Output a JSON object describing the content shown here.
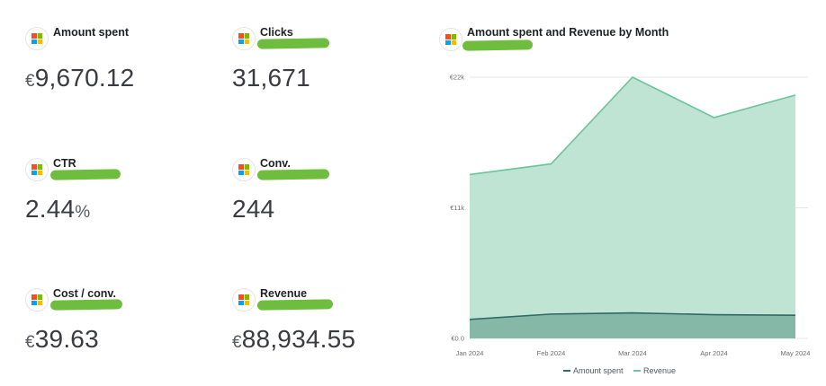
{
  "kpis": {
    "amount_spent": {
      "title": "Amount spent",
      "prefix": "€",
      "value": "9,670.12",
      "suffix": ""
    },
    "clicks": {
      "title": "Clicks",
      "prefix": "",
      "value": "31,671",
      "suffix": ""
    },
    "ctr": {
      "title": "CTR",
      "prefix": "",
      "value": "2.44",
      "suffix": "%"
    },
    "conv": {
      "title": "Conv.",
      "prefix": "",
      "value": "244",
      "suffix": ""
    },
    "cost_per_conv": {
      "title": "Cost / conv.",
      "prefix": "€",
      "value": "39.63",
      "suffix": ""
    },
    "revenue": {
      "title": "Revenue",
      "prefix": "€",
      "value": "88,934.55",
      "suffix": ""
    }
  },
  "icons": {
    "platform_logo": "microsoft-logo-icon"
  },
  "colors": {
    "revenue_line": "#6cc49a",
    "revenue_fill": "#c0e4d3",
    "spent_line": "#2f6b62",
    "spent_fill": "#86b8a8",
    "redaction": "#6fbd3e"
  },
  "chart_data": {
    "type": "area",
    "title": "Amount spent and Revenue by Month",
    "categories": [
      "Jan 2024",
      "Feb 2024",
      "Mar 2024",
      "Apr 2024",
      "May 2024"
    ],
    "y_ticks": [
      "€0.0",
      "€11k",
      "€22k"
    ],
    "ylim": [
      0,
      22000
    ],
    "grid": true,
    "legend_position": "bottom",
    "series": [
      {
        "name": "Amount spent",
        "values": [
          1600,
          2050,
          2150,
          2000,
          1950
        ],
        "color": "#2f6b62"
      },
      {
        "name": "Revenue",
        "values": [
          13800,
          14700,
          22000,
          18600,
          20500
        ],
        "color": "#6cc49a"
      }
    ]
  }
}
